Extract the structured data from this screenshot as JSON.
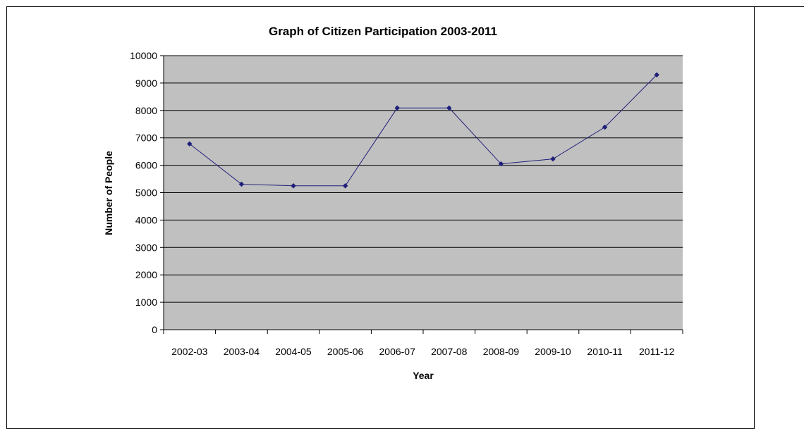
{
  "chart_data": {
    "type": "line",
    "title": "Graph of Citizen Participation 2003-2011",
    "xlabel": "Year",
    "ylabel": "Number of People",
    "categories": [
      "2002-03",
      "2003-04",
      "2004-05",
      "2005-06",
      "2006-07",
      "2007-08",
      "2008-09",
      "2009-10",
      "2010-11",
      "2011-12"
    ],
    "series": [
      {
        "values": [
          6780,
          5310,
          5250,
          5250,
          8090,
          8090,
          6050,
          6230,
          7390,
          9300
        ]
      }
    ],
    "ylim": [
      0,
      10000
    ],
    "yticks": [
      "0",
      "1000",
      "2000",
      "3000",
      "4000",
      "5000",
      "6000",
      "7000",
      "8000",
      "9000",
      "10000"
    ],
    "grid": true,
    "legend": "none",
    "colors": {
      "plot_background": "#c0c0c0",
      "line": "#1f1f7a",
      "marker": "#1f1f7a",
      "gridline": "#000000"
    }
  }
}
